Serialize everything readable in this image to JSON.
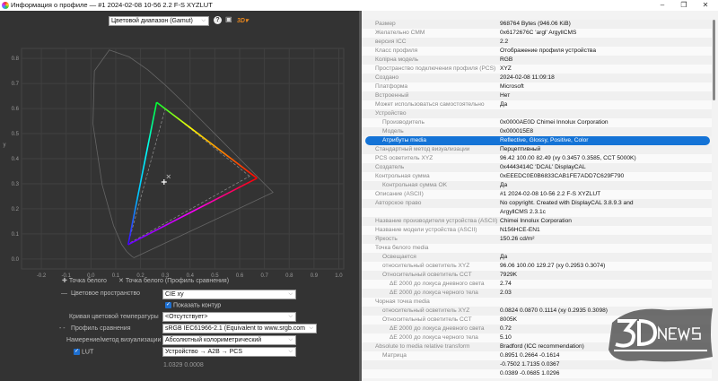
{
  "window": {
    "title": "Информация о профиле — #1 2024-02-08 10-56 2.2 F-S XYZLUT",
    "minimize": "–",
    "maximize": "❐",
    "close": "✕"
  },
  "toolbar": {
    "mode": "Цветовой диапазон (Gamut)",
    "help_icon": "?",
    "image_icon": "▣",
    "logo_menu": "3D▾"
  },
  "chart_data": {
    "type": "scatter",
    "xlabel": "x",
    "ylabel": "y",
    "xlim": [
      -0.28,
      1.02
    ],
    "ylim": [
      -0.04,
      0.84
    ],
    "xticks": [
      "-0.2",
      "-0.1",
      "0.0",
      "0.1",
      "0.2",
      "0.3",
      "0.4",
      "0.5",
      "0.6",
      "0.7",
      "0.8",
      "0.9",
      "1.0"
    ],
    "yticks": [
      "0.0",
      "0.1",
      "0.2",
      "0.3",
      "0.4",
      "0.5",
      "0.6",
      "0.7",
      "0.8"
    ],
    "grid": true,
    "profile_gamut": {
      "red": [
        0.67,
        0.322
      ],
      "green": [
        0.265,
        0.625
      ],
      "blue": [
        0.15,
        0.057
      ]
    },
    "comparison_gamut": {
      "red": [
        0.64,
        0.33
      ],
      "green": [
        0.3,
        0.6
      ],
      "blue": [
        0.15,
        0.06
      ]
    },
    "white_point": [
      0.295,
      0.307
    ],
    "comparison_white_point": [
      0.313,
      0.329
    ]
  },
  "controls": {
    "legend_white": "Точка белого",
    "legend_white_cmp": "Точка белого (Профиль сравнения)",
    "colorspace_label": "Цветовое пространство",
    "colorspace_value": "CIE xy",
    "show_outline": "Показать контур",
    "cct_label": "Кривая цветовой температуры",
    "cct_value": "<Отсутствует>",
    "compare_label": "Профиль сравнения",
    "compare_value": "sRGB IEC61966-2.1 (Equivalent to www.srgb.com",
    "intent_label": "Намерение/метод визуализации",
    "intent_value": "Абсолютный колориметрический",
    "lut_label": "LUT",
    "lut_value": "Устройство → A2B → PCS",
    "readout": "1.0329 0.0008"
  },
  "info_rows": [
    {
      "label": "Размер",
      "value": "968764 Bytes (946.06 KiB)",
      "indent": 0
    },
    {
      "label": "Желательно CMM",
      "value": "0x6172676C 'argl' ArgyllCMS",
      "indent": 0
    },
    {
      "label": "версия ICC",
      "value": "2.2",
      "indent": 0
    },
    {
      "label": "Класс профиля",
      "value": "Отображение профиля устройства",
      "indent": 0
    },
    {
      "label": "Колірна модель",
      "value": "RGB",
      "indent": 0
    },
    {
      "label": "Пространство подключения профиля (PCS)",
      "value": "XYZ",
      "indent": 0
    },
    {
      "label": "Создано",
      "value": "2024-02-08 11:09:18",
      "indent": 0
    },
    {
      "label": "Платформа",
      "value": "Microsoft",
      "indent": 0
    },
    {
      "label": "Встроенный",
      "value": "Нет",
      "indent": 0
    },
    {
      "label": "Может использоваться самостоятельно",
      "value": "Да",
      "indent": 0
    },
    {
      "label": "Устройство",
      "value": "",
      "indent": 0
    },
    {
      "label": "Производитель",
      "value": "0x0000AE0D Chimei Innolux Corporation",
      "indent": 1
    },
    {
      "label": "Модель",
      "value": "0x000015E8",
      "indent": 1
    },
    {
      "label": "Атрибуты media",
      "value": "Reflective, Glossy, Positive, Color",
      "indent": 1,
      "selected": true
    },
    {
      "label": "Стандартный метод визуализации",
      "value": "Перцептивный",
      "indent": 0
    },
    {
      "label": "PCS осветитель XYZ",
      "value": "96.42 100.00  82.49 (xy 0.3457 0.3585, CCT 5000K)",
      "indent": 0
    },
    {
      "label": "Создатель",
      "value": "0x4443414C 'DCAL' DisplayCAL",
      "indent": 0
    },
    {
      "label": "Контрольная сумма",
      "value": "0xEEEDC0E0B6833CAB1FE7ADD7C629F790",
      "indent": 0
    },
    {
      "label": "Контрольная сумма OK",
      "value": "Да",
      "indent": 1
    },
    {
      "label": "Описание (ASCII)",
      "value": "#1 2024-02-08 10-56 2.2 F-S XYZLUT",
      "indent": 0
    },
    {
      "label": "Авторское право",
      "value": "No copyright. Created with DisplayCAL 3.8.9.3 and",
      "indent": 0
    },
    {
      "label": "",
      "value": "ArgyllCMS 2.3.1c",
      "indent": 0
    },
    {
      "label": "Название производителя устройства (ASCII)",
      "value": "Chimei Innolux Corporation",
      "indent": 0
    },
    {
      "label": "Название модели устройства (ASCII)",
      "value": "N156HCE-EN1",
      "indent": 0
    },
    {
      "label": "Яркость",
      "value": "150.26 cd/m²",
      "indent": 0
    },
    {
      "label": "Точка белого media",
      "value": "",
      "indent": 0
    },
    {
      "label": "Освещается",
      "value": "Да",
      "indent": 1
    },
    {
      "label": "относительный осветитель XYZ",
      "value": "96.06 100.00 129.27 (xy 0.2953 0.3074)",
      "indent": 1
    },
    {
      "label": "Относительный осветитель CCT",
      "value": "7929K",
      "indent": 1
    },
    {
      "label": "ΔE 2000 до локуса дневного света",
      "value": "2.74",
      "indent": 2
    },
    {
      "label": "ΔE 2000 до локуса черного тела",
      "value": "2.03",
      "indent": 2
    },
    {
      "label": "Чорная точка media",
      "value": "",
      "indent": 0
    },
    {
      "label": "относительный осветитель XYZ",
      "value": "0.0824 0.0870 0.1114 (xy 0.2935 0.3098)",
      "indent": 1
    },
    {
      "label": "Относительный осветитель CCT",
      "value": "8005K",
      "indent": 1
    },
    {
      "label": "ΔE 2000 до локуса дневного света",
      "value": "0.72",
      "indent": 2
    },
    {
      "label": "ΔE 2000 до локуса черного тела",
      "value": "5.10",
      "indent": 2
    },
    {
      "label": "Absolute to media relative transform",
      "value": "Bradford (ICC recommendation)",
      "indent": 0
    },
    {
      "label": "Матрица",
      "value": "0.8951 0.2664 -0.1614",
      "indent": 1
    },
    {
      "label": "",
      "value": "-0.7502 1.7135 0.0367",
      "indent": 0
    },
    {
      "label": "",
      "value": "0.0389 -0.0685 1.0296",
      "indent": 0
    }
  ],
  "watermark": {
    "brand": "3DNEWS",
    "tagline": "Daily Digital Digest"
  }
}
